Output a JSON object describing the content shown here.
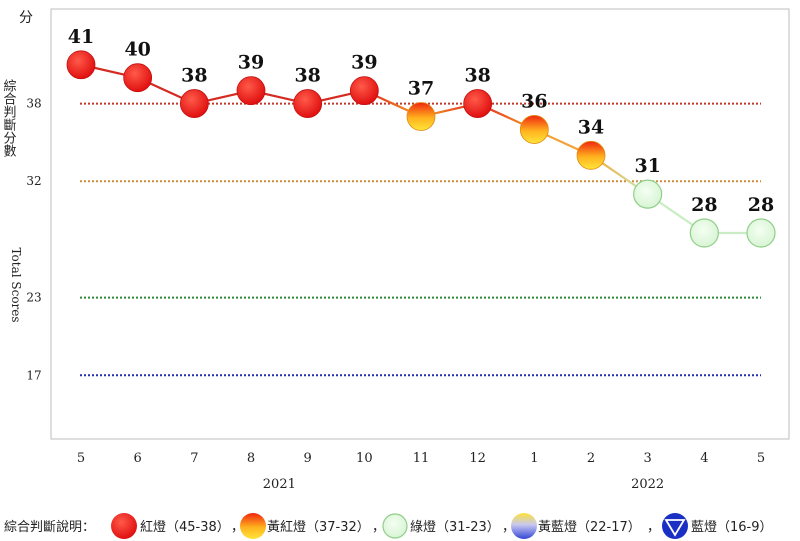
{
  "chart_data": {
    "type": "line",
    "y_unit_label": "分",
    "ylabel_cn": "綜合判斷分數",
    "ylabel_en": "Total Scores",
    "ylim": [
      12,
      45
    ],
    "yticks": [
      17,
      23,
      32,
      38
    ],
    "thresholds": [
      {
        "value": 38,
        "color": "#c0392b"
      },
      {
        "value": 32,
        "color": "#d08a3a"
      },
      {
        "value": 23,
        "color": "#2e8b3a"
      },
      {
        "value": 17,
        "color": "#1f2fb0"
      }
    ],
    "x_labels": [
      "5",
      "6",
      "7",
      "8",
      "9",
      "10",
      "11",
      "12",
      "1",
      "2",
      "3",
      "4",
      "5"
    ],
    "year_labels": [
      {
        "label": "2021",
        "center_index": 3.5
      },
      {
        "label": "2022",
        "center_index": 10
      }
    ],
    "values": [
      41,
      40,
      38,
      39,
      38,
      39,
      37,
      38,
      36,
      34,
      31,
      28,
      28
    ],
    "signals": [
      "red",
      "red",
      "red",
      "red",
      "red",
      "red",
      "yellow-red",
      "red",
      "yellow-red",
      "yellow-red",
      "green",
      "green",
      "green"
    ],
    "colors": {
      "red": "#e81a1a",
      "yellow-red": "#f5a623",
      "green": "#e3f7e1",
      "yellow-blue": "#6a78d8",
      "blue": "#1a2fc4"
    }
  },
  "legend": {
    "title": "綜合判斷說明：",
    "items": [
      {
        "label": "紅燈（45-38）",
        "sep": "，"
      },
      {
        "label": "黃紅燈（37-32）",
        "sep": "，"
      },
      {
        "label": "綠燈（31-23）",
        "sep": "，"
      },
      {
        "label": "黃藍燈（22-17）",
        "sep": "，"
      },
      {
        "label": "藍燈（16-9）",
        "sep": ""
      }
    ]
  }
}
